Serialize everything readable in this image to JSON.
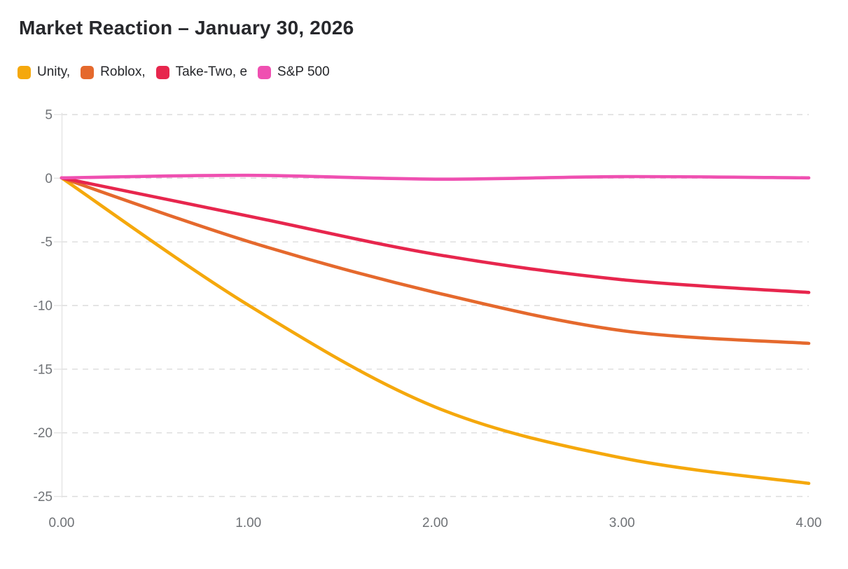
{
  "title": "Market Reaction – January 30, 2026",
  "chart_data": {
    "type": "line",
    "title": "Market Reaction – January 30, 2026",
    "x": [
      0,
      1,
      2,
      3,
      4
    ],
    "x_tick_labels": [
      "0.00",
      "1.00",
      "2.00",
      "3.00",
      "4.00"
    ],
    "xlim": [
      0,
      4
    ],
    "y_ticks": [
      5,
      0,
      -5,
      -10,
      -15,
      -20,
      -25
    ],
    "y_tick_labels": [
      "5",
      "0",
      "-5",
      "-10",
      "-15",
      "-20",
      "-25"
    ],
    "ylim": [
      -25,
      5
    ],
    "grid": true,
    "legend_position": "top-left",
    "series": [
      {
        "name": "Unity,",
        "color": "#F5A80C",
        "values": [
          0,
          -10,
          -18,
          -22,
          -24
        ]
      },
      {
        "name": "Roblox,",
        "color": "#E5692D",
        "values": [
          0,
          -5,
          -9,
          -12,
          -13
        ]
      },
      {
        "name": "Take-Two, e",
        "color": "#E7264D",
        "values": [
          0,
          -3,
          -6,
          -8,
          -9
        ]
      },
      {
        "name": "S&P 500",
        "color": "#EF50B1",
        "values": [
          0,
          0.2,
          -0.1,
          0.1,
          0
        ]
      }
    ]
  },
  "colors": {
    "title_text": "#27282C",
    "tick_text": "#6F7276",
    "gridline": "#DCDCDC",
    "axis_line": "#E4E4E4",
    "background": "#FFFFFF"
  }
}
